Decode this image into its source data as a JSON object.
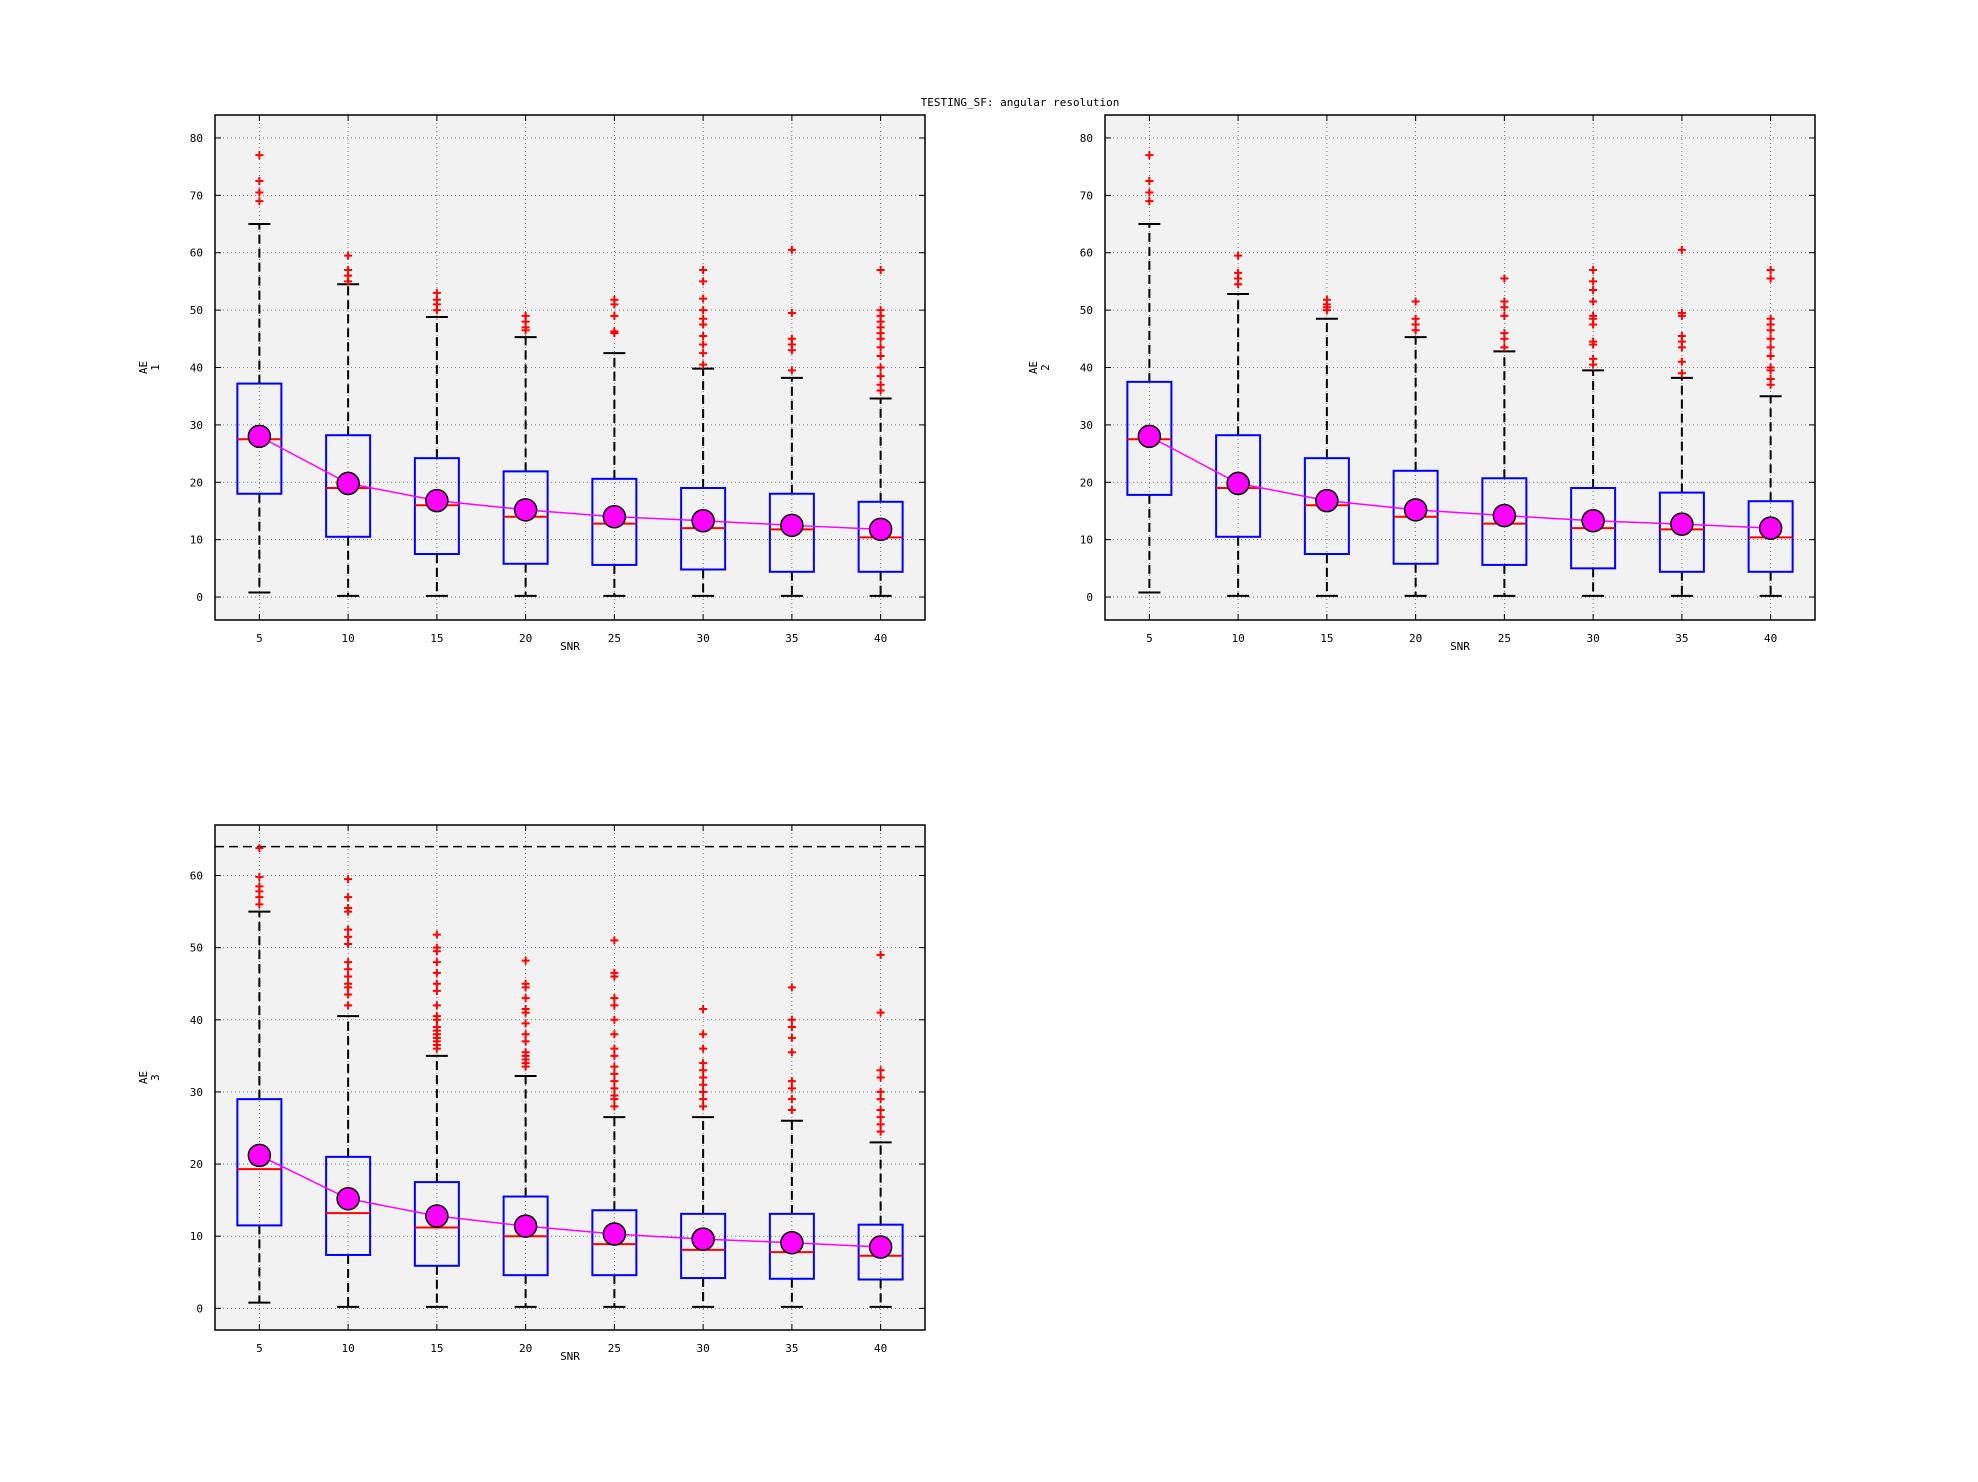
{
  "figure_title": "TESTING_SF: angular resolution",
  "chart_data": [
    {
      "type": "box",
      "title": "",
      "xlabel": "SNR",
      "ylabel": "AE",
      "ylabel_sub": "1",
      "categories": [
        "5",
        "10",
        "15",
        "20",
        "25",
        "30",
        "35",
        "40"
      ],
      "yticks": [
        0,
        10,
        20,
        30,
        40,
        50,
        60,
        70,
        80
      ],
      "ylim": [
        -4,
        84
      ],
      "grid": true,
      "boxes": [
        {
          "lw": 0.8,
          "q1": 18,
          "median": 27.5,
          "q3": 37.2,
          "uw": 65,
          "mean": 28,
          "outliers": [
            69,
            70.5,
            72.5,
            77
          ]
        },
        {
          "lw": 0.2,
          "q1": 10.5,
          "median": 19,
          "q3": 28.2,
          "uw": 54.5,
          "mean": 19.8,
          "outliers": [
            55,
            56,
            57,
            59.5
          ]
        },
        {
          "lw": 0.2,
          "q1": 7.5,
          "median": 16,
          "q3": 24.2,
          "uw": 48.8,
          "mean": 16.8,
          "outliers": [
            50,
            51,
            51.8,
            53
          ]
        },
        {
          "lw": 0.2,
          "q1": 5.8,
          "median": 14,
          "q3": 21.9,
          "uw": 45.3,
          "mean": 15.2,
          "outliers": [
            46.5,
            47,
            48,
            49
          ]
        },
        {
          "lw": 0.2,
          "q1": 5.6,
          "median": 12.8,
          "q3": 20.6,
          "uw": 42.5,
          "mean": 14,
          "outliers": [
            46,
            46.3,
            49,
            51,
            51.8
          ]
        },
        {
          "lw": 0.2,
          "q1": 4.8,
          "median": 12,
          "q3": 19,
          "uw": 39.8,
          "mean": 13.3,
          "outliers": [
            40.5,
            42.5,
            44,
            45.5,
            47.5,
            48.5,
            50,
            52,
            55,
            57
          ]
        },
        {
          "lw": 0.2,
          "q1": 4.4,
          "median": 11.8,
          "q3": 18,
          "uw": 38.2,
          "mean": 12.5,
          "outliers": [
            39.5,
            43,
            44,
            45,
            49.5,
            60.5
          ]
        },
        {
          "lw": 0.2,
          "q1": 4.4,
          "median": 10.4,
          "q3": 16.6,
          "uw": 34.6,
          "mean": 11.8,
          "outliers": [
            36,
            37,
            38.5,
            40,
            42,
            43.5,
            45,
            46,
            47,
            48,
            49,
            50,
            57
          ]
        }
      ],
      "colors": {
        "box": "#0000ff",
        "median": "#ff0000",
        "whisker": "#000000",
        "outlier": "#ff0000",
        "mean": "#ff00ff"
      }
    },
    {
      "type": "box",
      "title": "",
      "xlabel": "SNR",
      "ylabel": "AE",
      "ylabel_sub": "2",
      "categories": [
        "5",
        "10",
        "15",
        "20",
        "25",
        "30",
        "35",
        "40"
      ],
      "yticks": [
        0,
        10,
        20,
        30,
        40,
        50,
        60,
        70,
        80
      ],
      "ylim": [
        -4,
        84
      ],
      "grid": true,
      "boxes": [
        {
          "lw": 0.8,
          "q1": 17.8,
          "median": 27.5,
          "q3": 37.5,
          "uw": 65,
          "mean": 28,
          "outliers": [
            69,
            70.5,
            72.5,
            77
          ]
        },
        {
          "lw": 0.2,
          "q1": 10.5,
          "median": 19,
          "q3": 28.2,
          "uw": 52.8,
          "mean": 19.8,
          "outliers": [
            54.5,
            55.5,
            56.5,
            59.5
          ]
        },
        {
          "lw": 0.2,
          "q1": 7.5,
          "median": 16,
          "q3": 24.2,
          "uw": 48.5,
          "mean": 16.8,
          "outliers": [
            50,
            50.5,
            51,
            51.8
          ]
        },
        {
          "lw": 0.2,
          "q1": 5.8,
          "median": 14,
          "q3": 22,
          "uw": 45.3,
          "mean": 15.2,
          "outliers": [
            46.5,
            47.5,
            48.5,
            51.5
          ]
        },
        {
          "lw": 0.2,
          "q1": 5.6,
          "median": 12.8,
          "q3": 20.7,
          "uw": 42.8,
          "mean": 14.2,
          "outliers": [
            43.5,
            45,
            46,
            49,
            50.5,
            51.5,
            55.5
          ]
        },
        {
          "lw": 0.2,
          "q1": 5,
          "median": 12,
          "q3": 19,
          "uw": 39.5,
          "mean": 13.3,
          "outliers": [
            40.5,
            41.5,
            44,
            44.5,
            47.5,
            48.5,
            49,
            51.5,
            53.5,
            55,
            57
          ]
        },
        {
          "lw": 0.2,
          "q1": 4.4,
          "median": 11.8,
          "q3": 18.2,
          "uw": 38.2,
          "mean": 12.7,
          "outliers": [
            39,
            41,
            43.5,
            44.5,
            45.5,
            49,
            49.5,
            60.5
          ]
        },
        {
          "lw": 0.2,
          "q1": 4.4,
          "median": 10.4,
          "q3": 16.7,
          "uw": 35,
          "mean": 12,
          "outliers": [
            37,
            38,
            39.5,
            40,
            42,
            43.5,
            45,
            46.5,
            47.5,
            48.5,
            55.5,
            57
          ]
        }
      ],
      "colors": {
        "box": "#0000ff",
        "median": "#ff0000",
        "whisker": "#000000",
        "outlier": "#ff0000",
        "mean": "#ff00ff"
      }
    },
    {
      "type": "box",
      "title": "",
      "xlabel": "SNR",
      "ylabel": "AE",
      "ylabel_sub": "3",
      "categories": [
        "5",
        "10",
        "15",
        "20",
        "25",
        "30",
        "35",
        "40"
      ],
      "yticks": [
        0,
        10,
        20,
        30,
        40,
        50,
        60
      ],
      "ylim": [
        -3,
        67
      ],
      "grid": true,
      "reference_line": 64,
      "boxes": [
        {
          "lw": 0.8,
          "q1": 11.5,
          "median": 19.3,
          "q3": 29,
          "uw": 55,
          "mean": 21.2,
          "outliers": [
            56,
            57,
            57.8,
            58.5,
            59.8,
            63.8
          ]
        },
        {
          "lw": 0.2,
          "q1": 7.4,
          "median": 13.2,
          "q3": 21,
          "uw": 40.5,
          "mean": 15.2,
          "outliers": [
            42,
            43.5,
            44.5,
            45,
            46,
            47,
            48,
            50.5,
            51.5,
            52.5,
            55,
            55.5,
            57,
            59.5
          ]
        },
        {
          "lw": 0.2,
          "q1": 5.9,
          "median": 11.2,
          "q3": 17.5,
          "uw": 35,
          "mean": 12.8,
          "outliers": [
            36,
            36.5,
            37,
            37.5,
            38,
            38.5,
            39,
            40,
            40.5,
            42,
            44,
            45,
            46.5,
            48,
            49.5,
            50,
            51.8
          ]
        },
        {
          "lw": 0.2,
          "q1": 4.6,
          "median": 10,
          "q3": 15.5,
          "uw": 32.2,
          "mean": 11.4,
          "outliers": [
            33.5,
            34,
            34.5,
            35,
            35.5,
            37,
            38,
            39.5,
            41,
            41.5,
            43,
            44.5,
            45,
            48.2
          ]
        },
        {
          "lw": 0.2,
          "q1": 4.6,
          "median": 8.9,
          "q3": 13.6,
          "uw": 26.5,
          "mean": 10.3,
          "outliers": [
            28,
            29,
            29.5,
            30.5,
            31.5,
            32.5,
            33.5,
            35,
            36,
            38,
            40,
            42,
            43,
            46,
            46.5,
            51
          ]
        },
        {
          "lw": 0.2,
          "q1": 4.2,
          "median": 8.1,
          "q3": 13.1,
          "uw": 26.5,
          "mean": 9.6,
          "outliers": [
            28,
            29,
            30,
            31,
            32,
            33,
            34,
            36,
            38,
            41.5
          ]
        },
        {
          "lw": 0.2,
          "q1": 4.1,
          "median": 7.8,
          "q3": 13.1,
          "uw": 26,
          "mean": 9.1,
          "outliers": [
            27.5,
            29,
            30.5,
            31.5,
            35.5,
            37.5,
            39,
            40,
            44.5
          ]
        },
        {
          "lw": 0.2,
          "q1": 4,
          "median": 7.3,
          "q3": 11.6,
          "uw": 23,
          "mean": 8.5,
          "outliers": [
            24.5,
            25.5,
            26.5,
            27.5,
            29,
            30,
            32,
            33,
            41,
            49
          ]
        }
      ],
      "colors": {
        "box": "#0000ff",
        "median": "#ff0000",
        "whisker": "#000000",
        "outlier": "#ff0000",
        "mean": "#ff00ff"
      }
    }
  ]
}
